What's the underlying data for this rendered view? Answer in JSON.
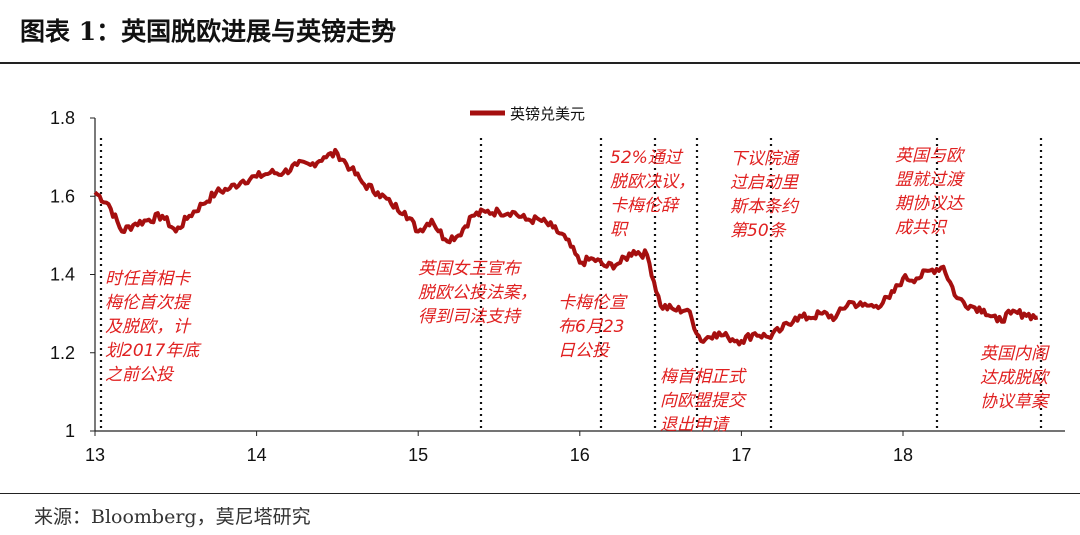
{
  "figure": {
    "title": "图表 1：英国脱欧进展与英镑走势",
    "source": "来源：Bloomberg，莫尼塔研究"
  },
  "colors": {
    "series": "#a50f0f",
    "annotation": "#e02020",
    "axis": "#222222"
  },
  "chart_data": {
    "type": "line",
    "series": [
      {
        "name": "英镑兑美元",
        "x": [
          "2013-01",
          "2013-02",
          "2013-03",
          "2013-04",
          "2013-05",
          "2013-06",
          "2013-07",
          "2013-08",
          "2013-09",
          "2013-10",
          "2013-11",
          "2013-12",
          "2014-01",
          "2014-02",
          "2014-03",
          "2014-04",
          "2014-05",
          "2014-06",
          "2014-07",
          "2014-08",
          "2014-09",
          "2014-10",
          "2014-11",
          "2014-12",
          "2015-01",
          "2015-02",
          "2015-03",
          "2015-04",
          "2015-05",
          "2015-06",
          "2015-07",
          "2015-08",
          "2015-09",
          "2015-10",
          "2015-11",
          "2015-12",
          "2016-01",
          "2016-02",
          "2016-03",
          "2016-04",
          "2016-05",
          "2016-06",
          "2016-07",
          "2016-08",
          "2016-09",
          "2016-10",
          "2016-11",
          "2016-12",
          "2017-01",
          "2017-02",
          "2017-03",
          "2017-04",
          "2017-05",
          "2017-06",
          "2017-07",
          "2017-08",
          "2017-09",
          "2017-10",
          "2017-11",
          "2017-12",
          "2018-01",
          "2018-02",
          "2018-03",
          "2018-04",
          "2018-05",
          "2018-06",
          "2018-07",
          "2018-08",
          "2018-09",
          "2018-10",
          "2018-11"
        ],
        "values": [
          1.61,
          1.58,
          1.51,
          1.53,
          1.54,
          1.55,
          1.51,
          1.55,
          1.58,
          1.61,
          1.62,
          1.64,
          1.65,
          1.66,
          1.66,
          1.68,
          1.68,
          1.7,
          1.71,
          1.67,
          1.63,
          1.61,
          1.58,
          1.56,
          1.51,
          1.54,
          1.49,
          1.5,
          1.55,
          1.56,
          1.56,
          1.56,
          1.54,
          1.54,
          1.52,
          1.49,
          1.43,
          1.44,
          1.42,
          1.43,
          1.46,
          1.45,
          1.32,
          1.31,
          1.31,
          1.23,
          1.25,
          1.24,
          1.23,
          1.25,
          1.24,
          1.26,
          1.29,
          1.29,
          1.3,
          1.29,
          1.33,
          1.32,
          1.32,
          1.34,
          1.39,
          1.39,
          1.41,
          1.42,
          1.34,
          1.32,
          1.31,
          1.28,
          1.3,
          1.3,
          1.29
        ]
      }
    ],
    "xaxis": {
      "ticks": [
        "13",
        "14",
        "15",
        "16",
        "17",
        "18"
      ]
    },
    "yaxis": {
      "ticks": [
        "1",
        "1.2",
        "1.4",
        "1.6",
        "1.8"
      ],
      "ylim": [
        1.0,
        1.8
      ]
    },
    "legend": "top-center",
    "grid": false,
    "events": [
      {
        "date": "2013-01",
        "text": [
          "时任首相卡",
          "梅伦首次提",
          "及脱欧，计",
          "划2017年底",
          "之前公投"
        ]
      },
      {
        "date": "2015-05",
        "text": [
          "英国女王宣布",
          "脱欧公投法案，",
          "得到司法支持"
        ]
      },
      {
        "date": "2016-02",
        "text": [
          "卡梅伦宣",
          "布6月23",
          "日公投"
        ]
      },
      {
        "date": "2016-06",
        "text": [
          "52%通过",
          "脱欧决议，",
          "卡梅伦辞",
          "职"
        ]
      },
      {
        "date": "2016-10",
        "text": [
          "梅首相正式",
          "向欧盟提交",
          "退出申请"
        ]
      },
      {
        "date": "2017-03",
        "text": [
          "下议院通",
          "过启动里",
          "斯本条约",
          "第50条"
        ]
      },
      {
        "date": "2018-03",
        "text": [
          "英国与欧",
          "盟就过渡",
          "期协议达",
          "成共识"
        ]
      },
      {
        "date": "2018-11",
        "text": [
          "英国内阁",
          "达成脱欧",
          "协议草案"
        ]
      }
    ]
  }
}
